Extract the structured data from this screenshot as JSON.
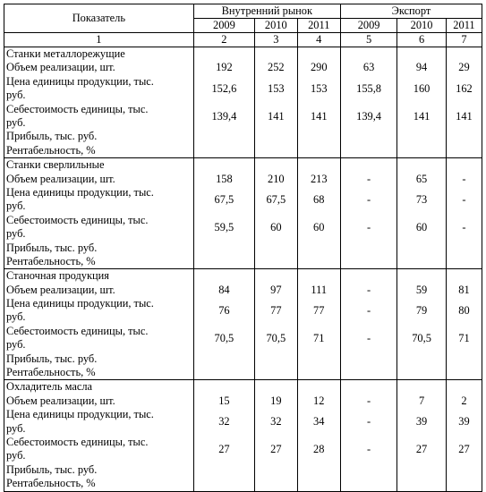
{
  "header": {
    "indicator": "Показатель",
    "domestic": "Внутренний рынок",
    "export": "Экспорт",
    "years": [
      "2009",
      "2010",
      "2011",
      "2009",
      "2010",
      "2011"
    ],
    "col_numbers": [
      "1",
      "2",
      "3",
      "4",
      "5",
      "6",
      "7"
    ]
  },
  "groups": [
    {
      "title": "Станки металлорежущие",
      "rows": [
        {
          "label": "Объем реализации, шт.",
          "values": [
            "192",
            "252",
            "290",
            "63",
            "94",
            "29"
          ]
        },
        {
          "label": "Цена единицы продукции, тыс.",
          "label2": "руб.",
          "values": [
            "152,6",
            "153",
            "153",
            "155,8",
            "160",
            "162"
          ]
        },
        {
          "label": "Себестоимость единицы, тыс.",
          "label2": "руб.",
          "values": [
            "139,4",
            "141",
            "141",
            "139,4",
            "141",
            "141"
          ]
        },
        {
          "label": "Прибыль, тыс. руб.",
          "values": [
            "",
            "",
            "",
            "",
            "",
            ""
          ]
        },
        {
          "label": "Рентабельность, %",
          "values": [
            "",
            "",
            "",
            "",
            "",
            ""
          ]
        }
      ]
    },
    {
      "title": "Станки сверлильные",
      "rows": [
        {
          "label": "Объем реализации, шт.",
          "values": [
            "158",
            "210",
            "213",
            "-",
            "65",
            "-"
          ]
        },
        {
          "label": "Цена единицы продукции, тыс.",
          "label2": "руб.",
          "values": [
            "67,5",
            "67,5",
            "68",
            "-",
            "73",
            "-"
          ]
        },
        {
          "label": "Себестоимость единицы, тыс.",
          "label2": "руб.",
          "values": [
            "59,5",
            "60",
            "60",
            "-",
            "60",
            "-"
          ]
        },
        {
          "label": "Прибыль, тыс. руб.",
          "values": [
            "",
            "",
            "",
            "",
            "",
            ""
          ]
        },
        {
          "label": "Рентабельность, %",
          "values": [
            "",
            "",
            "",
            "",
            "",
            ""
          ]
        }
      ]
    },
    {
      "title": "Станочная продукция",
      "rows": [
        {
          "label": "Объем реализации, шт.",
          "values": [
            "84",
            "97",
            "111",
            "-",
            "59",
            "81"
          ]
        },
        {
          "label": "Цена единицы продукции, тыс.",
          "label2": "руб.",
          "values": [
            "76",
            "77",
            "77",
            "-",
            "79",
            "80"
          ]
        },
        {
          "label": "Себестоимость единицы, тыс.",
          "label2": "руб.",
          "values": [
            "70,5",
            "70,5",
            "71",
            "-",
            "70,5",
            "71"
          ]
        },
        {
          "label": "Прибыль, тыс. руб.",
          "values": [
            "",
            "",
            "",
            "",
            "",
            ""
          ]
        },
        {
          "label": "Рентабельность, %",
          "values": [
            "",
            "",
            "",
            "",
            "",
            ""
          ]
        }
      ]
    },
    {
      "title": "Охладитель масла",
      "rows": [
        {
          "label": "Объем реализации, шт.",
          "values": [
            "15",
            "19",
            "12",
            "-",
            "7",
            "2"
          ]
        },
        {
          "label": "Цена единицы продукции, тыс.",
          "label2": "руб.",
          "values": [
            "32",
            "32",
            "34",
            "-",
            "39",
            "39"
          ]
        },
        {
          "label": "Себестоимость единицы, тыс.",
          "label2": "руб.",
          "values": [
            "27",
            "27",
            "28",
            "-",
            "27",
            "27"
          ]
        },
        {
          "label": "Прибыль, тыс. руб.",
          "values": [
            "",
            "",
            "",
            "",
            "",
            ""
          ]
        },
        {
          "label": "Рентабельность, %",
          "values": [
            "",
            "",
            "",
            "",
            "",
            ""
          ]
        }
      ]
    }
  ]
}
